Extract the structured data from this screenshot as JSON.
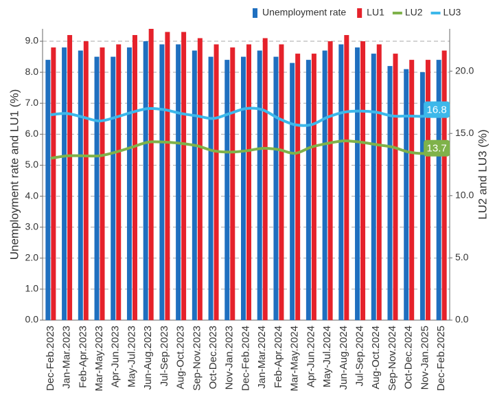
{
  "chart_data": {
    "type": "bar_line",
    "y_label": "Unemployment rate and LU1 (%)",
    "y2_label": "LU2 and LU3 (%)",
    "categories": [
      "Dec-Feb.2023",
      "Jan-Mar.2023",
      "Feb-Apr.2023",
      "Mar-May.2023",
      "Apr-Jun.2023",
      "May-Jul.2023",
      "Jun-Aug.2023",
      "Jul-Sep.2023",
      "Aug-Oct.2023",
      "Sep-Nov.2023",
      "Oct-Dec.2023",
      "Nov-Jan.2023",
      "Dec-Feb.2024",
      "Jan-Mar.2024",
      "Feb-Apr.2024",
      "Mar-May.2024",
      "Apr-Jun.2024",
      "May-Jul.2024",
      "Jun-Aug.2024",
      "Jul-Sep.2024",
      "Aug-Oct.2024",
      "Sep-Nov.2024",
      "Oct-Dec.2024",
      "Nov-Jan.2025",
      "Dec-Feb.2025"
    ],
    "series": [
      {
        "name": "Unemployment rate",
        "kind": "bar",
        "color": "#1f6fbf",
        "values": [
          8.4,
          8.8,
          8.7,
          8.5,
          8.5,
          8.8,
          9.0,
          8.9,
          8.9,
          8.7,
          8.5,
          8.4,
          8.5,
          8.7,
          8.5,
          8.3,
          8.4,
          8.7,
          8.9,
          8.8,
          8.6,
          8.2,
          8.1,
          8.0,
          8.4
        ]
      },
      {
        "name": "LU1",
        "kind": "bar",
        "color": "#e5222b",
        "values": [
          8.8,
          9.2,
          9.0,
          8.8,
          8.9,
          9.2,
          9.4,
          9.3,
          9.3,
          9.1,
          8.9,
          8.8,
          8.9,
          9.1,
          8.9,
          8.6,
          8.6,
          9.0,
          9.2,
          9.0,
          8.9,
          8.6,
          8.4,
          8.4,
          8.7
        ]
      },
      {
        "name": "LU2",
        "kind": "line",
        "axis": "y2",
        "color": "#7fb24a",
        "values": [
          13.0,
          13.2,
          13.2,
          13.2,
          13.5,
          13.9,
          14.3,
          14.3,
          14.2,
          14.0,
          13.6,
          13.5,
          13.6,
          13.8,
          13.7,
          13.4,
          13.9,
          14.2,
          14.4,
          14.3,
          14.1,
          13.9,
          13.5,
          13.4,
          13.7
        ]
      },
      {
        "name": "LU3",
        "kind": "line",
        "axis": "y2",
        "color": "#3db8ea",
        "values": [
          16.5,
          16.6,
          16.3,
          16.0,
          16.3,
          16.7,
          17.0,
          16.9,
          16.6,
          16.4,
          16.2,
          16.6,
          17.0,
          16.9,
          16.2,
          15.7,
          15.7,
          16.3,
          16.7,
          16.8,
          16.7,
          16.4,
          16.4,
          16.4,
          16.8
        ]
      }
    ],
    "ylim": [
      0,
      9.4
    ],
    "yticks": [
      {
        "value": 0,
        "label": "0.0"
      },
      {
        "value": 1,
        "label": "1.0"
      },
      {
        "value": 2,
        "label": "2.0"
      },
      {
        "value": 3,
        "label": "3.0"
      },
      {
        "value": 4,
        "label": "4.0"
      },
      {
        "value": 5,
        "label": "5.0"
      },
      {
        "value": 6,
        "label": "6.0"
      },
      {
        "value": 7,
        "label": "7.0"
      },
      {
        "value": 8,
        "label": "8.0"
      },
      {
        "value": 9,
        "label": "9.0"
      }
    ],
    "y2lim": [
      0,
      23.4
    ],
    "y2ticks": [
      {
        "value": 0,
        "label": "0.0"
      },
      {
        "value": 5,
        "label": "5.0"
      },
      {
        "value": 10,
        "label": "10.0"
      },
      {
        "value": 15,
        "label": "15.0"
      },
      {
        "value": 20,
        "label": "20.0"
      }
    ],
    "grid": true,
    "legend": "top-right"
  }
}
